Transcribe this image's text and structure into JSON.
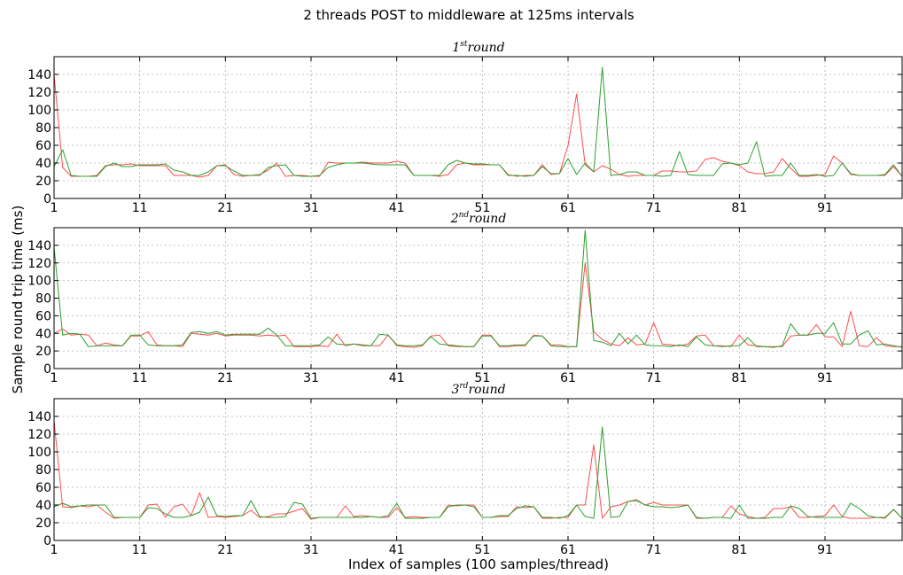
{
  "figure": {
    "suptitle": "2 threads POST to middleware at 125ms intervals",
    "ylabel": "Sample round trip time (ms)",
    "xlabel": "Index of samples (100 samples/thread)",
    "colors": {
      "thread_red": "#ff4d4d",
      "thread_green": "#2ca02c"
    }
  },
  "chart_data": [
    {
      "type": "line",
      "title": {
        "base": "1",
        "sup": "st",
        "rest": "round"
      },
      "xlim": [
        1,
        100
      ],
      "ylim": [
        0,
        160
      ],
      "xticks": [
        1,
        11,
        21,
        31,
        41,
        51,
        61,
        71,
        81,
        91
      ],
      "yticks": [
        0,
        20,
        40,
        60,
        80,
        100,
        120,
        140
      ],
      "grid": true,
      "series": [
        {
          "color": "#ff4d4d",
          "values": [
            140,
            35,
            25,
            25,
            25,
            26,
            37,
            38,
            38,
            39,
            37,
            37,
            37,
            37,
            26,
            26,
            26,
            24,
            26,
            37,
            38,
            27,
            25,
            26,
            27,
            32,
            40,
            25,
            26,
            26,
            25,
            25,
            41,
            40,
            40,
            40,
            41,
            40,
            40,
            40,
            42,
            40,
            26,
            26,
            26,
            25,
            27,
            38,
            40,
            38,
            38,
            38,
            38,
            27,
            25,
            26,
            26,
            38,
            27,
            28,
            60,
            118,
            38,
            30,
            37,
            33,
            27,
            25,
            26,
            26,
            26,
            31,
            31,
            30,
            30,
            31,
            44,
            46,
            42,
            40,
            37,
            30,
            28,
            28,
            30,
            45,
            34,
            25,
            25,
            26,
            27,
            48,
            40,
            27,
            26,
            26,
            26,
            26,
            36,
            25
          ]
        },
        {
          "color": "#2ca02c",
          "values": [
            36,
            55,
            26,
            25,
            25,
            25,
            36,
            40,
            36,
            36,
            38,
            38,
            38,
            39,
            32,
            30,
            26,
            26,
            30,
            37,
            37,
            31,
            26,
            26,
            26,
            35,
            37,
            38,
            26,
            25,
            25,
            26,
            35,
            38,
            40,
            40,
            40,
            39,
            38,
            38,
            38,
            38,
            26,
            26,
            26,
            26,
            38,
            43,
            40,
            39,
            39,
            38,
            38,
            26,
            26,
            25,
            26,
            36,
            28,
            28,
            45,
            27,
            40,
            30,
            148,
            26,
            27,
            30,
            30,
            26,
            26,
            25,
            26,
            53,
            27,
            26,
            26,
            26,
            39,
            40,
            38,
            40,
            64,
            25,
            26,
            26,
            40,
            26,
            26,
            27,
            25,
            26,
            40,
            28,
            26,
            26,
            26,
            27,
            38,
            25
          ]
        }
      ]
    },
    {
      "type": "line",
      "title": {
        "base": "2",
        "sup": "nd",
        "rest": "round"
      },
      "xlim": [
        1,
        100
      ],
      "ylim": [
        0,
        160
      ],
      "xticks": [
        1,
        11,
        21,
        31,
        41,
        51,
        61,
        71,
        81,
        91
      ],
      "yticks": [
        0,
        20,
        40,
        60,
        80,
        100,
        120,
        140
      ],
      "grid": true,
      "series": [
        {
          "color": "#ff4d4d",
          "values": [
            40,
            45,
            38,
            39,
            38,
            26,
            29,
            27,
            26,
            37,
            37,
            42,
            27,
            26,
            26,
            25,
            40,
            39,
            38,
            40,
            37,
            38,
            38,
            38,
            37,
            38,
            37,
            38,
            25,
            25,
            25,
            26,
            25,
            39,
            26,
            28,
            26,
            26,
            26,
            38,
            26,
            25,
            24,
            26,
            37,
            38,
            26,
            25,
            25,
            25,
            38,
            38,
            25,
            25,
            26,
            26,
            38,
            37,
            27,
            27,
            25,
            25,
            120,
            42,
            33,
            28,
            26,
            35,
            27,
            28,
            52,
            28,
            27,
            26,
            28,
            37,
            38,
            26,
            26,
            25,
            38,
            27,
            26,
            25,
            25,
            25,
            37,
            38,
            38,
            50,
            36,
            36,
            25,
            65,
            26,
            25,
            35,
            26,
            25,
            25
          ]
        },
        {
          "color": "#2ca02c",
          "values": [
            138,
            38,
            40,
            39,
            25,
            26,
            26,
            26,
            26,
            38,
            38,
            27,
            26,
            26,
            26,
            27,
            41,
            42,
            40,
            42,
            38,
            39,
            39,
            39,
            39,
            46,
            38,
            26,
            26,
            26,
            26,
            27,
            36,
            28,
            27,
            28,
            27,
            26,
            39,
            38,
            27,
            26,
            26,
            27,
            36,
            28,
            27,
            26,
            25,
            25,
            37,
            37,
            26,
            26,
            27,
            27,
            37,
            37,
            26,
            25,
            25,
            25,
            157,
            32,
            30,
            26,
            40,
            28,
            38,
            27,
            26,
            26,
            25,
            27,
            25,
            36,
            27,
            26,
            25,
            26,
            26,
            35,
            25,
            25,
            24,
            26,
            51,
            38,
            38,
            40,
            40,
            52,
            28,
            28,
            38,
            43,
            27,
            28,
            26,
            24
          ]
        }
      ]
    },
    {
      "type": "line",
      "title": {
        "base": "3",
        "sup": "rd",
        "rest": "round"
      },
      "xlim": [
        1,
        100
      ],
      "ylim": [
        0,
        160
      ],
      "xticks": [
        1,
        11,
        21,
        31,
        41,
        51,
        61,
        71,
        81,
        91
      ],
      "yticks": [
        0,
        20,
        40,
        60,
        80,
        100,
        120,
        140
      ],
      "grid": true,
      "series": [
        {
          "color": "#ff4d4d",
          "values": [
            135,
            38,
            37,
            39,
            38,
            40,
            32,
            25,
            26,
            26,
            26,
            40,
            41,
            26,
            38,
            41,
            28,
            54,
            26,
            27,
            26,
            27,
            28,
            34,
            26,
            27,
            30,
            30,
            33,
            36,
            24,
            26,
            26,
            26,
            39,
            27,
            28,
            27,
            26,
            26,
            37,
            26,
            27,
            26,
            26,
            26,
            40,
            39,
            40,
            40,
            26,
            26,
            27,
            27,
            38,
            37,
            38,
            25,
            25,
            26,
            26,
            40,
            40,
            108,
            25,
            38,
            40,
            44,
            46,
            40,
            43,
            40,
            40,
            40,
            40,
            25,
            25,
            26,
            26,
            39,
            30,
            27,
            25,
            26,
            36,
            36,
            38,
            26,
            26,
            27,
            28,
            40,
            27,
            25,
            25,
            25,
            26,
            25,
            35,
            25
          ]
        },
        {
          "color": "#2ca02c",
          "values": [
            38,
            42,
            38,
            39,
            40,
            40,
            40,
            26,
            26,
            26,
            26,
            37,
            36,
            30,
            26,
            26,
            28,
            32,
            49,
            28,
            27,
            28,
            28,
            45,
            27,
            26,
            26,
            27,
            43,
            41,
            25,
            26,
            26,
            26,
            26,
            26,
            26,
            27,
            26,
            28,
            42,
            25,
            25,
            25,
            26,
            26,
            38,
            40,
            40,
            38,
            26,
            26,
            28,
            28,
            36,
            39,
            38,
            26,
            26,
            25,
            28,
            40,
            27,
            25,
            128,
            26,
            27,
            44,
            45,
            40,
            38,
            38,
            37,
            38,
            40,
            26,
            25,
            26,
            26,
            25,
            40,
            25,
            25,
            25,
            26,
            26,
            39,
            36,
            27,
            26,
            26,
            26,
            26,
            42,
            36,
            28,
            26,
            26,
            35,
            25
          ]
        }
      ]
    }
  ]
}
